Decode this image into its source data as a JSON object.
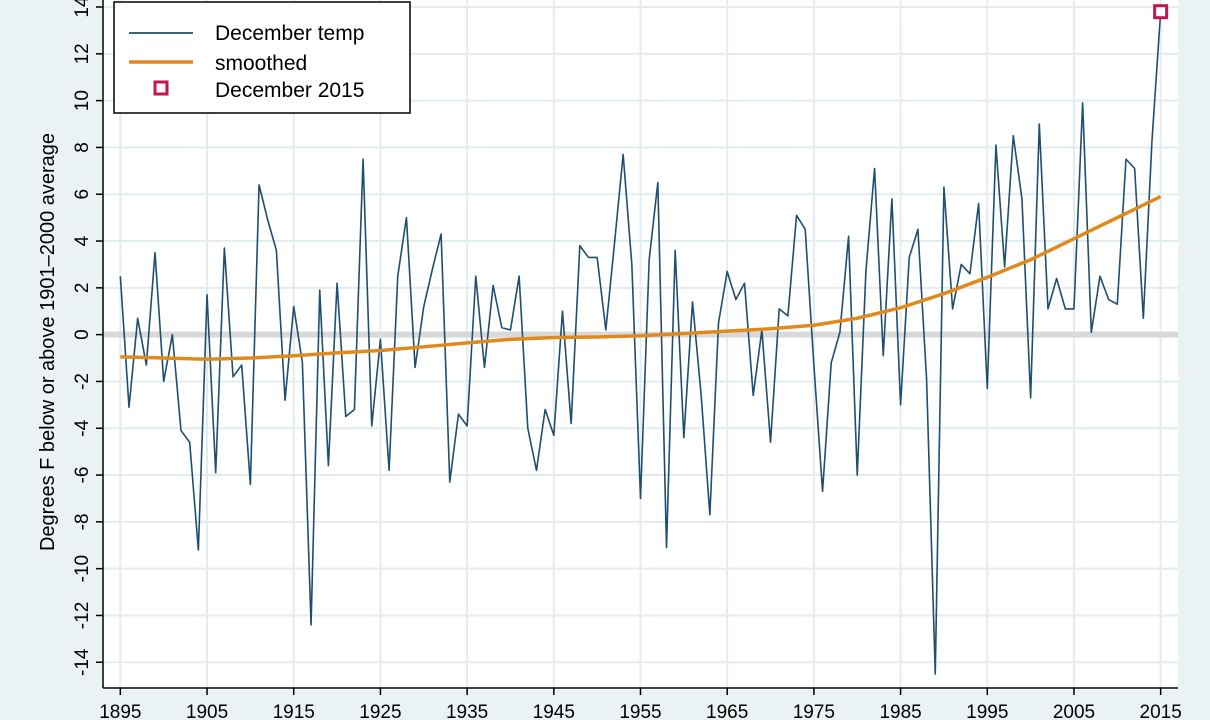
{
  "chart_data": {
    "type": "line",
    "ylabel": "Degrees F below or above 1901–2000 average",
    "xlabel": "",
    "xlim": [
      1893,
      2017
    ],
    "ylim": [
      -15.1,
      14.3
    ],
    "x_ticks": [
      1895,
      1905,
      1915,
      1925,
      1935,
      1945,
      1955,
      1965,
      1975,
      1985,
      1995,
      2005,
      2015
    ],
    "x_tick_labels": [
      "1895",
      "1905",
      "1915",
      "1925",
      "1935",
      "1945",
      "1955",
      "1965",
      "1975",
      "1985",
      "1995",
      "2005",
      "2015"
    ],
    "y_ticks": [
      -14,
      -12,
      -10,
      -8,
      -6,
      -4,
      -2,
      0,
      2,
      4,
      6,
      8,
      10,
      12,
      14
    ],
    "y_tick_labels": [
      "-14",
      "-12",
      "-10",
      "-8",
      "-6",
      "-4",
      "-2",
      "0",
      "2",
      "4",
      "6",
      "8",
      "10",
      "12",
      "14"
    ],
    "grid": true,
    "reference_line": 0,
    "legend": {
      "position": "top-left",
      "entries": [
        "December temp",
        "smoothed",
        "December 2015"
      ]
    },
    "series": [
      {
        "name": "December temp",
        "color": "#1f4e6e",
        "x": [
          1895,
          1896,
          1897,
          1898,
          1899,
          1900,
          1901,
          1902,
          1903,
          1904,
          1905,
          1906,
          1907,
          1908,
          1909,
          1910,
          1911,
          1912,
          1913,
          1914,
          1915,
          1916,
          1917,
          1918,
          1919,
          1920,
          1921,
          1922,
          1923,
          1924,
          1925,
          1926,
          1927,
          1928,
          1929,
          1930,
          1931,
          1932,
          1933,
          1934,
          1935,
          1936,
          1937,
          1938,
          1939,
          1940,
          1941,
          1942,
          1943,
          1944,
          1945,
          1946,
          1947,
          1948,
          1949,
          1950,
          1951,
          1952,
          1953,
          1954,
          1955,
          1956,
          1957,
          1958,
          1959,
          1960,
          1961,
          1962,
          1963,
          1964,
          1965,
          1966,
          1967,
          1968,
          1969,
          1970,
          1971,
          1972,
          1973,
          1974,
          1975,
          1976,
          1977,
          1978,
          1979,
          1980,
          1981,
          1982,
          1983,
          1984,
          1985,
          1986,
          1987,
          1988,
          1989,
          1990,
          1991,
          1992,
          1993,
          1994,
          1995,
          1996,
          1997,
          1998,
          1999,
          2000,
          2001,
          2002,
          2003,
          2004,
          2005,
          2006,
          2007,
          2008,
          2009,
          2010,
          2011,
          2012,
          2013,
          2014,
          2015
        ],
        "values": [
          2.5,
          -3.1,
          0.7,
          -1.3,
          3.5,
          -2.0,
          0.0,
          -4.1,
          -4.6,
          -9.2,
          1.7,
          -5.9,
          3.7,
          -1.8,
          -1.3,
          -6.4,
          6.4,
          4.9,
          3.6,
          -2.8,
          1.2,
          -1.2,
          -12.4,
          1.9,
          -5.6,
          2.2,
          -3.5,
          -3.2,
          7.5,
          -3.9,
          -0.2,
          -5.8,
          2.5,
          5.0,
          -1.4,
          1.2,
          2.8,
          4.3,
          -6.3,
          -3.4,
          -3.9,
          2.5,
          -1.4,
          2.1,
          0.3,
          0.2,
          2.5,
          -4.0,
          -5.8,
          -3.2,
          -4.3,
          1.0,
          -3.8,
          3.8,
          3.3,
          3.3,
          0.2,
          3.9,
          7.7,
          3.0,
          -7.0,
          3.2,
          6.5,
          -9.1,
          3.6,
          -4.4,
          1.4,
          -2.6,
          -7.7,
          0.5,
          2.7,
          1.5,
          2.2,
          -2.6,
          0.2,
          -4.6,
          1.1,
          0.8,
          5.1,
          4.5,
          -1.3,
          -6.7,
          -1.2,
          0.1,
          4.2,
          -6.0,
          2.7,
          7.1,
          -0.9,
          5.8,
          -3.0,
          3.3,
          4.5,
          -1.9,
          -14.5,
          6.3,
          1.1,
          3.0,
          2.6,
          5.6,
          -2.3,
          8.1,
          2.9,
          8.5,
          5.8,
          -2.7,
          9.0,
          1.1,
          2.4,
          1.1,
          1.1,
          9.9,
          0.1,
          2.5,
          1.5,
          1.3,
          7.5,
          7.1,
          0.7,
          8.3,
          13.8
        ]
      },
      {
        "name": "smoothed",
        "color": "#e08a1e",
        "x": [
          1895,
          1900,
          1905,
          1910,
          1915,
          1920,
          1925,
          1930,
          1935,
          1940,
          1945,
          1950,
          1955,
          1960,
          1965,
          1970,
          1975,
          1980,
          1985,
          1990,
          1995,
          2000,
          2005,
          2010,
          2015
        ],
        "values": [
          -0.95,
          -1.0,
          -1.05,
          -1.0,
          -0.9,
          -0.78,
          -0.68,
          -0.52,
          -0.35,
          -0.2,
          -0.12,
          -0.1,
          -0.05,
          0.05,
          0.15,
          0.25,
          0.4,
          0.7,
          1.15,
          1.75,
          2.45,
          3.2,
          4.1,
          5.0,
          5.9
        ]
      },
      {
        "name": "December 2015",
        "color": "#c0174a",
        "x": [
          2015
        ],
        "values": [
          13.8
        ]
      }
    ]
  }
}
